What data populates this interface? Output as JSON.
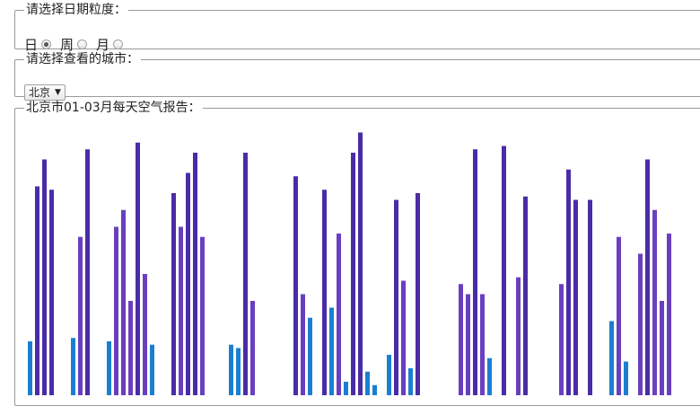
{
  "granularity": {
    "legend": "请选择日期粒度：",
    "options": [
      {
        "label": "日",
        "checked": true
      },
      {
        "label": "周",
        "checked": false
      },
      {
        "label": "月",
        "checked": false
      }
    ]
  },
  "city": {
    "legend": "请选择查看的城市：",
    "selected": "北京"
  },
  "report": {
    "legend": "北京市01-03月每天空气报告："
  },
  "colors": {
    "good": "#1a7fd1",
    "moderate": "#6a3fbf",
    "polluted": "#4a2ca6"
  },
  "chart_data": {
    "type": "bar",
    "values": [
      16,
      62,
      70,
      61,
      0,
      0,
      17,
      47,
      73,
      0,
      0,
      16,
      50,
      55,
      28,
      75,
      36,
      15,
      0,
      0,
      60,
      50,
      66,
      72,
      47,
      0,
      0,
      0,
      15,
      14,
      72,
      28,
      0,
      0,
      0,
      0,
      0,
      65,
      30,
      23,
      0,
      61,
      26,
      48,
      4,
      72,
      78,
      7,
      3,
      0,
      12,
      58,
      34,
      8,
      60,
      0,
      0,
      0,
      0,
      0,
      33,
      30,
      73,
      30,
      11,
      0,
      74,
      0,
      35,
      59,
      0,
      0,
      0,
      0,
      33,
      67,
      58,
      0,
      58,
      0,
      0,
      22,
      47,
      10,
      0,
      42,
      70,
      55,
      28,
      48
    ],
    "colors": [
      "good",
      "polluted",
      "polluted",
      "polluted",
      "",
      "",
      "good",
      "moderate",
      "polluted",
      "",
      "",
      "good",
      "moderate",
      "moderate",
      "moderate",
      "polluted",
      "moderate",
      "good",
      "",
      "",
      "polluted",
      "moderate",
      "polluted",
      "polluted",
      "moderate",
      "",
      "",
      "",
      "good",
      "good",
      "polluted",
      "moderate",
      "",
      "",
      "",
      "",
      "",
      "polluted",
      "moderate",
      "good",
      "",
      "polluted",
      "good",
      "moderate",
      "good",
      "polluted",
      "polluted",
      "good",
      "good",
      "",
      "good",
      "polluted",
      "moderate",
      "good",
      "polluted",
      "",
      "",
      "",
      "",
      "",
      "moderate",
      "moderate",
      "polluted",
      "moderate",
      "good",
      "",
      "polluted",
      "",
      "moderate",
      "polluted",
      "",
      "",
      "",
      "",
      "moderate",
      "polluted",
      "polluted",
      "",
      "polluted",
      "",
      "",
      "good",
      "moderate",
      "good",
      "",
      "moderate",
      "polluted",
      "moderate",
      "moderate",
      "moderate"
    ],
    "ylim": [
      0,
      80
    ],
    "grid": false,
    "legend": "none"
  }
}
